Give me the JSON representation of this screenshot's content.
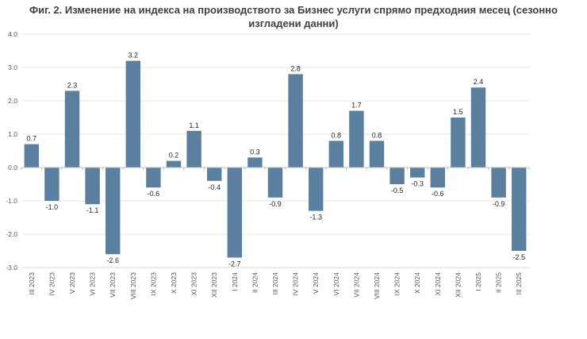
{
  "chart_data": {
    "type": "bar",
    "title_line1": "Фиг. 2. Изменение на индекса на производството за Бизнес услуги спрямо предходния месец (сезонно",
    "title_line2": "изгладени данни)",
    "categories": [
      "III 2023",
      "IV 2023",
      "V 2023",
      "VI 2023",
      "VII 2023",
      "VIII 2023",
      "IX 2023",
      "X 2023",
      "XI 2023",
      "XII 2023",
      "I 2024",
      "II 2024",
      "III 2024",
      "IV 2024",
      "V 2024",
      "VI 2024",
      "VII 2024",
      "VIII 2024",
      "IX 2024",
      "X 2024",
      "XI 2024",
      "XII 2024",
      "I 2025",
      "II 2025",
      "III 2025"
    ],
    "values": [
      0.7,
      -1.0,
      2.3,
      -1.1,
      -2.6,
      3.2,
      -0.6,
      0.2,
      1.1,
      -0.4,
      -2.7,
      0.3,
      -0.9,
      2.8,
      -1.3,
      0.8,
      1.7,
      0.8,
      -0.5,
      -0.3,
      -0.6,
      1.5,
      2.4,
      -0.9,
      -2.5
    ],
    "value_labels": [
      "0.7",
      "-1.0",
      "2.3",
      "-1.1",
      "-2.6",
      "3.2",
      "-0.6",
      "0.2",
      "1.1",
      "-0.4",
      "-2.7",
      "0.3",
      "-0.9",
      "2.8",
      "-1.3",
      "0.8",
      "1.7",
      "0.8",
      "-0.5",
      "-0.3",
      "-0.6",
      "1.5",
      "2.4",
      "-0.9",
      "-2.5"
    ],
    "yticks": [
      "4.0",
      "3.0",
      "2.0",
      "1.0",
      "0.0",
      "-1.0",
      "-2.0",
      "-3.0"
    ],
    "ylim": [
      -3.0,
      4.0
    ],
    "xlabel": "",
    "ylabel": "",
    "grid": true,
    "bar_color": "#5b7f9e"
  }
}
